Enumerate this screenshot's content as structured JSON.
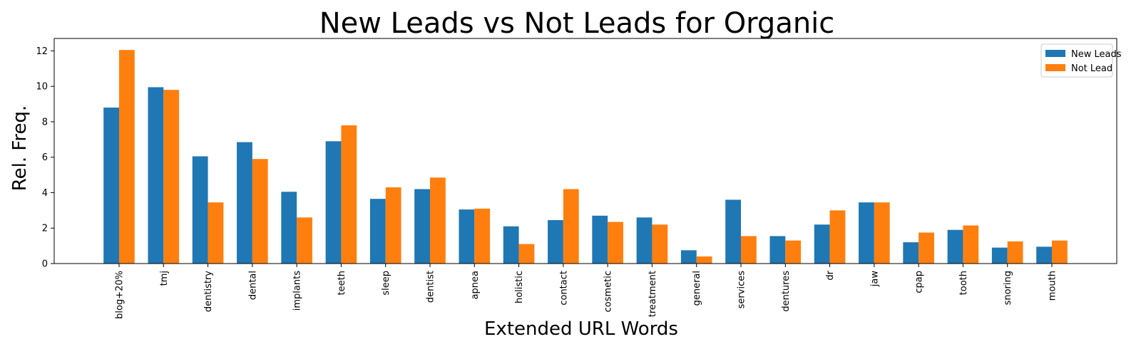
{
  "chart_data": {
    "type": "bar",
    "title": "New Leads vs Not Leads for Organic",
    "xlabel": "Extended URL Words",
    "ylabel": "Rel. Freq.",
    "ylim": [
      0,
      12.7
    ],
    "yticks": [
      0,
      2,
      4,
      6,
      8,
      10,
      12
    ],
    "grid": false,
    "legend_position": "top-right",
    "categories": [
      "blog+20%",
      "tmj",
      "dentistry",
      "dental",
      "implants",
      "teeth",
      "sleep",
      "dentist",
      "apnea",
      "holistic",
      "contact",
      "cosmetic",
      "treatment",
      "general",
      "services",
      "dentures",
      "dr",
      "jaw",
      "cpap",
      "tooth",
      "snoring",
      "mouth"
    ],
    "series": [
      {
        "name": "New Leads",
        "color": "#1f77b4",
        "values": [
          8.8,
          9.95,
          6.05,
          6.85,
          4.05,
          6.9,
          3.65,
          4.2,
          3.05,
          2.1,
          2.45,
          2.7,
          2.6,
          0.75,
          3.6,
          1.55,
          2.2,
          3.45,
          1.2,
          1.9,
          0.9,
          0.95
        ]
      },
      {
        "name": "Not Lead",
        "color": "#ff7f0e",
        "values": [
          12.05,
          9.8,
          3.45,
          5.9,
          2.6,
          7.8,
          4.3,
          4.85,
          3.1,
          1.1,
          4.2,
          2.35,
          2.2,
          0.4,
          1.55,
          1.3,
          3.0,
          3.45,
          1.75,
          2.15,
          1.25,
          1.3
        ]
      }
    ]
  }
}
